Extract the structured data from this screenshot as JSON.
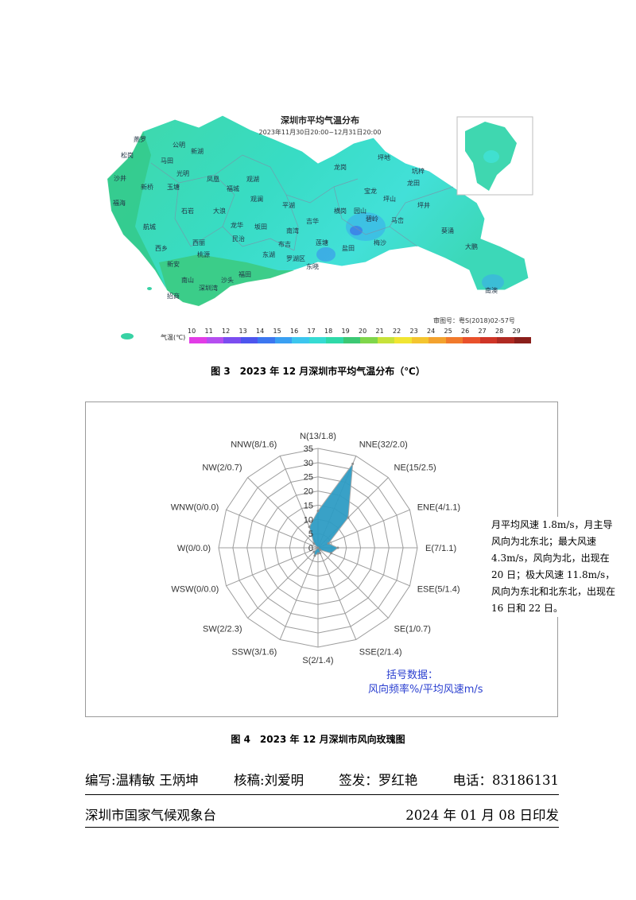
{
  "figure3": {
    "map_title": "深圳市平均气温分布",
    "map_subtitle": "2023年11月30日20:00~12月31日20:00",
    "credit": "审图号：粤S(2018)02-57号",
    "legend_label": "气温(℃)",
    "legend_ticks": [
      "10",
      "11",
      "12",
      "13",
      "14",
      "15",
      "16",
      "17",
      "18",
      "19",
      "20",
      "21",
      "22",
      "23",
      "24",
      "25",
      "26",
      "27",
      "28",
      "29"
    ],
    "legend_colors": [
      "#e23ce6",
      "#b54ef0",
      "#7b4df0",
      "#4d55ee",
      "#3c77f0",
      "#3aa0f2",
      "#3cc6ee",
      "#36dbd3",
      "#2fd9a8",
      "#3cc874",
      "#7fd64b",
      "#c7e23a",
      "#f1e532",
      "#f4c52f",
      "#f3a22e",
      "#f17a2c",
      "#e9512b",
      "#cf3527",
      "#b02a22",
      "#8a1f1b"
    ],
    "places": [
      {
        "name": "燕罗"
      },
      {
        "name": "松岗"
      },
      {
        "name": "公明"
      },
      {
        "name": "新湖"
      },
      {
        "name": "马田"
      },
      {
        "name": "沙井"
      },
      {
        "name": "新桥"
      },
      {
        "name": "玉塘"
      },
      {
        "name": "光明"
      },
      {
        "name": "凤凰"
      },
      {
        "name": "观湖"
      },
      {
        "name": "福海"
      },
      {
        "name": "石岩"
      },
      {
        "name": "大浪"
      },
      {
        "name": "福城"
      },
      {
        "name": "观澜"
      },
      {
        "name": "航城"
      },
      {
        "name": "西乡"
      },
      {
        "name": "西丽"
      },
      {
        "name": "民治"
      },
      {
        "name": "龙华"
      },
      {
        "name": "坂田"
      },
      {
        "name": "平湖"
      },
      {
        "name": "南湾"
      },
      {
        "name": "布吉"
      },
      {
        "name": "吉华"
      },
      {
        "name": "坪地"
      },
      {
        "name": "龙岗"
      },
      {
        "name": "宝龙"
      },
      {
        "name": "坪山"
      },
      {
        "name": "龙田"
      },
      {
        "name": "坑梓"
      },
      {
        "name": "碧岭"
      },
      {
        "name": "马峦"
      },
      {
        "name": "坪井"
      },
      {
        "name": "梅沙"
      },
      {
        "name": "葵涌"
      },
      {
        "name": "大鹏"
      },
      {
        "name": "南澳"
      },
      {
        "name": "新安"
      },
      {
        "name": "桃源"
      },
      {
        "name": "南山"
      },
      {
        "name": "福田"
      },
      {
        "name": "罗湖区"
      },
      {
        "name": "东湖"
      },
      {
        "name": "莲塘"
      },
      {
        "name": "横岗"
      },
      {
        "name": "园山"
      },
      {
        "name": "东晓"
      },
      {
        "name": "盐田"
      },
      {
        "name": "招商"
      },
      {
        "name": "深圳湾"
      },
      {
        "name": "沙头"
      }
    ],
    "caption": "图 3　2023 年 12 月深圳市平均气温分布（℃）"
  },
  "figure4": {
    "caption": "图 4　2023 年 12 月深圳市风向玫瑰图",
    "note": "月平均风速 1.8m/s，月主导风向为北东北；最大风速 4.3m/s，风向为北，出现在 20 日；极大风速 11.8m/s，风向为东北和北东北，出现在 16 日和 22 日。",
    "legend_title": "括号数据：",
    "legend_text": "风向频率%/平均风速m/s",
    "chart_data": {
      "type": "radar",
      "radial_ticks": [
        0,
        5,
        10,
        15,
        20,
        25,
        30,
        35
      ],
      "rmax": 35,
      "fill_color": "#2e9cc4",
      "directions": [
        {
          "label": "N(13/1.8)",
          "dir": "N",
          "frequency": 13,
          "speed": 1.8
        },
        {
          "label": "NNE(32/2.0)",
          "dir": "NNE",
          "frequency": 32,
          "speed": 2.0
        },
        {
          "label": "NE(15/2.5)",
          "dir": "NE",
          "frequency": 15,
          "speed": 2.5
        },
        {
          "label": "ENE(4/1.1)",
          "dir": "ENE",
          "frequency": 4,
          "speed": 1.1
        },
        {
          "label": "E(7/1.1)",
          "dir": "E",
          "frequency": 7,
          "speed": 1.1
        },
        {
          "label": "ESE(5/1.4)",
          "dir": "ESE",
          "frequency": 5,
          "speed": 1.4
        },
        {
          "label": "SE(1/0.7)",
          "dir": "SE",
          "frequency": 1,
          "speed": 0.7
        },
        {
          "label": "SSE(2/1.4)",
          "dir": "SSE",
          "frequency": 2,
          "speed": 1.4
        },
        {
          "label": "S(2/1.4)",
          "dir": "S",
          "frequency": 2,
          "speed": 1.4
        },
        {
          "label": "SSW(3/1.6)",
          "dir": "SSW",
          "frequency": 3,
          "speed": 1.6
        },
        {
          "label": "SW(2/2.3)",
          "dir": "SW",
          "frequency": 2,
          "speed": 2.3
        },
        {
          "label": "WSW(0/0.0)",
          "dir": "WSW",
          "frequency": 0,
          "speed": 0.0
        },
        {
          "label": "W(0/0.0)",
          "dir": "W",
          "frequency": 0,
          "speed": 0.0
        },
        {
          "label": "WNW(0/0.0)",
          "dir": "WNW",
          "frequency": 0,
          "speed": 0.0
        },
        {
          "label": "NW(2/0.7)",
          "dir": "NW",
          "frequency": 2,
          "speed": 0.7
        },
        {
          "label": "NNW(8/1.6)",
          "dir": "NNW",
          "frequency": 8,
          "speed": 1.6
        }
      ]
    }
  },
  "footer": {
    "writers": "编写:温精敏  王炳坤",
    "reviewer": "核稿:刘爱明",
    "signer": "签发：罗红艳",
    "phone": "电话：83186131",
    "org": "深圳市国家气候观象台",
    "date": "2024 年 01 月 08 日印发"
  }
}
